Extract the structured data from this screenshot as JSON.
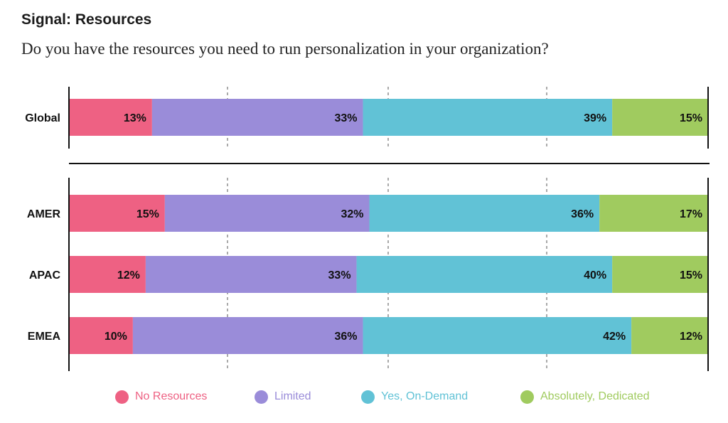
{
  "title": "Signal: Resources",
  "subtitle": "Do you have the resources you need to run personalization in your organization?",
  "colors": {
    "No Resources": "#ee6183",
    "Limited": "#9a8cd9",
    "Yes, On-Demand": "#61c2d6",
    "Absolutely, Dedicated": "#a0cb5f",
    "text": "#111111",
    "axis": "#111111",
    "grid": "#555555"
  },
  "chart_data": {
    "type": "bar",
    "orientation": "horizontal",
    "stacked": true,
    "normalized_percent": true,
    "categories": [
      "Global",
      "AMER",
      "APAC",
      "EMEA"
    ],
    "groups": [
      [
        "Global"
      ],
      [
        "AMER",
        "APAC",
        "EMEA"
      ]
    ],
    "series": [
      {
        "name": "No Resources",
        "values": [
          13,
          15,
          12,
          10
        ]
      },
      {
        "name": "Limited",
        "values": [
          33,
          32,
          33,
          36
        ]
      },
      {
        "name": "Yes, On-Demand",
        "values": [
          39,
          36,
          40,
          42
        ]
      },
      {
        "name": "Absolutely, Dedicated",
        "values": [
          15,
          17,
          15,
          12
        ]
      }
    ],
    "value_labels": [
      [
        "13%",
        "33%",
        "39%",
        "15%"
      ],
      [
        "15%",
        "32%",
        "36%",
        "17%"
      ],
      [
        "12%",
        "33%",
        "40%",
        "15%"
      ],
      [
        "10%",
        "36%",
        "42%",
        "12%"
      ]
    ],
    "xlim": [
      0,
      100
    ],
    "grid": "dashed vertical",
    "legend_position": "bottom"
  }
}
